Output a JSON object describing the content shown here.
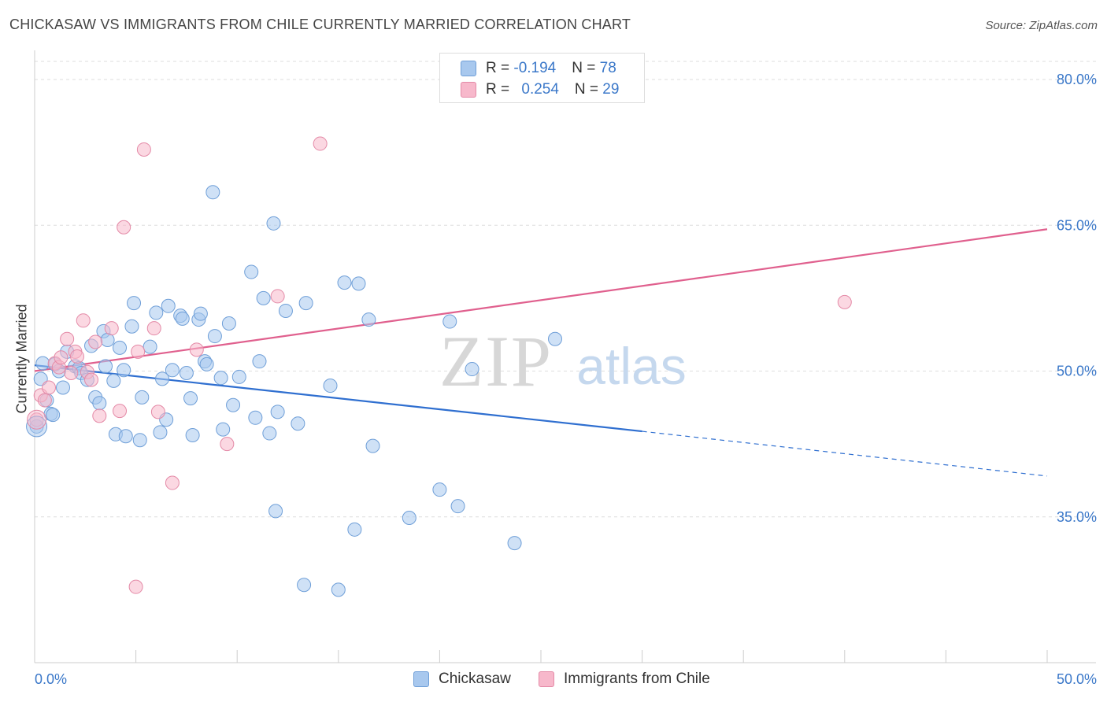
{
  "title": "CHICKASAW VS IMMIGRANTS FROM CHILE CURRENTLY MARRIED CORRELATION CHART",
  "source": "Source: ZipAtlas.com",
  "watermark": {
    "zip": "ZIP",
    "atlas": "atlas"
  },
  "legend": {
    "rows": [
      {
        "r_label": "R = ",
        "r_value": "-0.194",
        "n_label": "N = ",
        "n_value": "78",
        "color": "#a8c8ee"
      },
      {
        "r_label": "R = ",
        "r_value": "0.254",
        "n_label": "N = ",
        "n_value": "29",
        "color": "#f7b8cb"
      }
    ]
  },
  "bottom_legend": [
    {
      "label": "Chickasaw",
      "color": "#a8c8ee"
    },
    {
      "label": "Immigrants from Chile",
      "color": "#f7b8cb"
    }
  ],
  "chart_data": {
    "type": "scatter",
    "xlabel": "",
    "ylabel": "Currently Married",
    "xlim": [
      0,
      50
    ],
    "ylim": [
      20,
      83
    ],
    "x_tick_labels": [
      "0.0%",
      "50.0%"
    ],
    "y_ticks": [
      35,
      50,
      65,
      80
    ],
    "y_tick_labels": [
      "35.0%",
      "50.0%",
      "65.0%",
      "80.0%"
    ],
    "grid": "horizontal-dashed",
    "series": [
      {
        "name": "Chickasaw",
        "color": "#a8c8ee",
        "stroke": "#6f9fd8",
        "trend": {
          "x0": 0,
          "y0": 50.6,
          "x1": 30,
          "y1": 43.8,
          "dash_x1": 50,
          "dash_y1": 39.2,
          "color": "#2f6fd0"
        },
        "points": [
          [
            0.1,
            44.3
          ],
          [
            0.3,
            49.2
          ],
          [
            0.4,
            50.8
          ],
          [
            0.6,
            47.0
          ],
          [
            0.8,
            45.6
          ],
          [
            0.9,
            45.5
          ],
          [
            1.0,
            50.7
          ],
          [
            1.2,
            50.0
          ],
          [
            1.4,
            48.3
          ],
          [
            1.6,
            52.0
          ],
          [
            2.0,
            50.5
          ],
          [
            2.2,
            50.3
          ],
          [
            2.3,
            49.8
          ],
          [
            2.6,
            49.1
          ],
          [
            2.8,
            52.6
          ],
          [
            3.0,
            47.3
          ],
          [
            3.2,
            46.7
          ],
          [
            3.4,
            54.1
          ],
          [
            3.6,
            53.2
          ],
          [
            3.9,
            49.0
          ],
          [
            4.0,
            43.5
          ],
          [
            4.2,
            52.4
          ],
          [
            4.4,
            50.1
          ],
          [
            4.5,
            43.3
          ],
          [
            4.8,
            54.6
          ],
          [
            4.9,
            57.0
          ],
          [
            5.2,
            42.9
          ],
          [
            5.3,
            47.3
          ],
          [
            5.7,
            52.5
          ],
          [
            6.0,
            56.0
          ],
          [
            6.2,
            43.7
          ],
          [
            6.3,
            49.2
          ],
          [
            6.5,
            45.0
          ],
          [
            6.6,
            56.7
          ],
          [
            6.8,
            50.1
          ],
          [
            7.2,
            55.7
          ],
          [
            7.3,
            55.4
          ],
          [
            7.5,
            49.8
          ],
          [
            7.7,
            47.2
          ],
          [
            7.8,
            43.4
          ],
          [
            8.1,
            55.3
          ],
          [
            8.2,
            55.9
          ],
          [
            8.4,
            51.0
          ],
          [
            8.5,
            50.7
          ],
          [
            8.8,
            68.4
          ],
          [
            8.9,
            53.6
          ],
          [
            9.2,
            49.3
          ],
          [
            9.3,
            44.0
          ],
          [
            9.6,
            54.9
          ],
          [
            9.8,
            46.5
          ],
          [
            10.1,
            49.4
          ],
          [
            10.7,
            60.2
          ],
          [
            10.9,
            45.2
          ],
          [
            11.1,
            51.0
          ],
          [
            11.3,
            57.5
          ],
          [
            11.6,
            43.6
          ],
          [
            11.8,
            65.2
          ],
          [
            11.9,
            35.6
          ],
          [
            12.0,
            45.8
          ],
          [
            12.4,
            56.2
          ],
          [
            13.0,
            44.6
          ],
          [
            13.3,
            28.0
          ],
          [
            13.4,
            57.0
          ],
          [
            14.6,
            48.5
          ],
          [
            15.0,
            27.5
          ],
          [
            15.3,
            59.1
          ],
          [
            15.8,
            33.7
          ],
          [
            16.0,
            59.0
          ],
          [
            16.5,
            55.3
          ],
          [
            16.7,
            42.3
          ],
          [
            18.5,
            34.9
          ],
          [
            20.0,
            37.8
          ],
          [
            20.5,
            55.1
          ],
          [
            20.9,
            36.1
          ],
          [
            21.6,
            50.2
          ],
          [
            23.7,
            32.3
          ],
          [
            25.7,
            53.3
          ],
          [
            3.5,
            50.5
          ]
        ]
      },
      {
        "name": "Immigrants from Chile",
        "color": "#f7b8cb",
        "stroke": "#e48aa7",
        "trend": {
          "x0": 0,
          "y0": 50.0,
          "x1": 50,
          "y1": 64.6,
          "color": "#e0608e"
        },
        "points": [
          [
            0.1,
            45.0
          ],
          [
            0.3,
            47.5
          ],
          [
            0.5,
            47.0
          ],
          [
            0.7,
            48.3
          ],
          [
            1.0,
            50.8
          ],
          [
            1.2,
            50.4
          ],
          [
            1.3,
            51.4
          ],
          [
            1.6,
            53.3
          ],
          [
            1.8,
            49.8
          ],
          [
            2.0,
            52.0
          ],
          [
            2.1,
            51.5
          ],
          [
            2.4,
            55.2
          ],
          [
            2.6,
            49.9
          ],
          [
            2.8,
            49.1
          ],
          [
            3.0,
            53.0
          ],
          [
            3.2,
            45.4
          ],
          [
            3.8,
            54.4
          ],
          [
            4.2,
            45.9
          ],
          [
            4.4,
            64.8
          ],
          [
            5.0,
            27.8
          ],
          [
            5.1,
            52.0
          ],
          [
            5.4,
            72.8
          ],
          [
            5.9,
            54.4
          ],
          [
            6.1,
            45.8
          ],
          [
            6.8,
            38.5
          ],
          [
            8.0,
            52.2
          ],
          [
            9.5,
            42.5
          ],
          [
            12.0,
            57.7
          ],
          [
            14.1,
            73.4
          ]
        ]
      },
      {
        "name": "",
        "color": "#f7b8cb",
        "stroke": "#e48aa7",
        "points": [
          [
            40.0,
            57.1
          ]
        ]
      }
    ]
  }
}
